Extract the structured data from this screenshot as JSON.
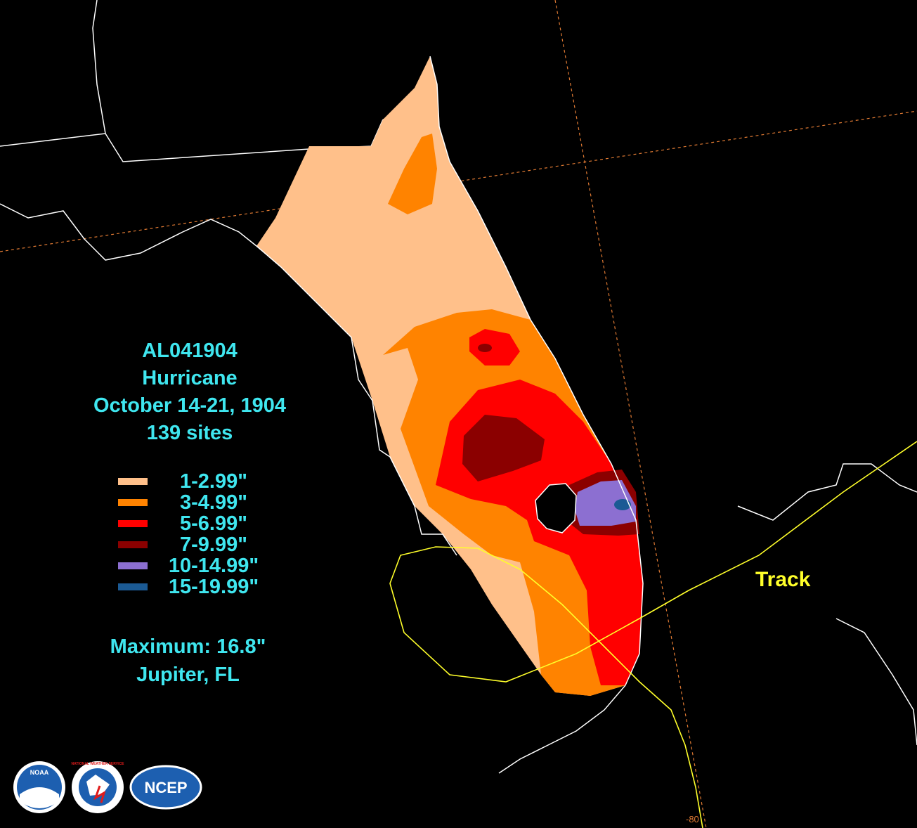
{
  "storm": {
    "id": "AL041904",
    "type": "Hurricane",
    "dates": "October 14-21, 1904",
    "sites": "139 sites"
  },
  "legend": [
    {
      "label": "1-2.99\"",
      "color": "#ffc08a"
    },
    {
      "label": "3-4.99\"",
      "color": "#ff8300"
    },
    {
      "label": "5-6.99\"",
      "color": "#ff0000"
    },
    {
      "label": "7-9.99\"",
      "color": "#8b0000"
    },
    {
      "label": "10-14.99\"",
      "color": "#8c6fd1"
    },
    {
      "label": "15-19.99\"",
      "color": "#1b5a94"
    }
  ],
  "maximum": {
    "value": "Maximum: 16.8\"",
    "location": "Jupiter, FL"
  },
  "track_label": "Track",
  "graticule_label": "-80",
  "logos": [
    {
      "name": "noaa",
      "text": "NOAA"
    },
    {
      "name": "nws",
      "text": "NATIONAL WEATHER SERVICE"
    },
    {
      "name": "ncep",
      "text": "NCEP"
    }
  ],
  "colors": {
    "coastline": "#ffffff",
    "graticule": "#e07a33",
    "track": "#ffff2a",
    "text": "#3fe6ef"
  }
}
